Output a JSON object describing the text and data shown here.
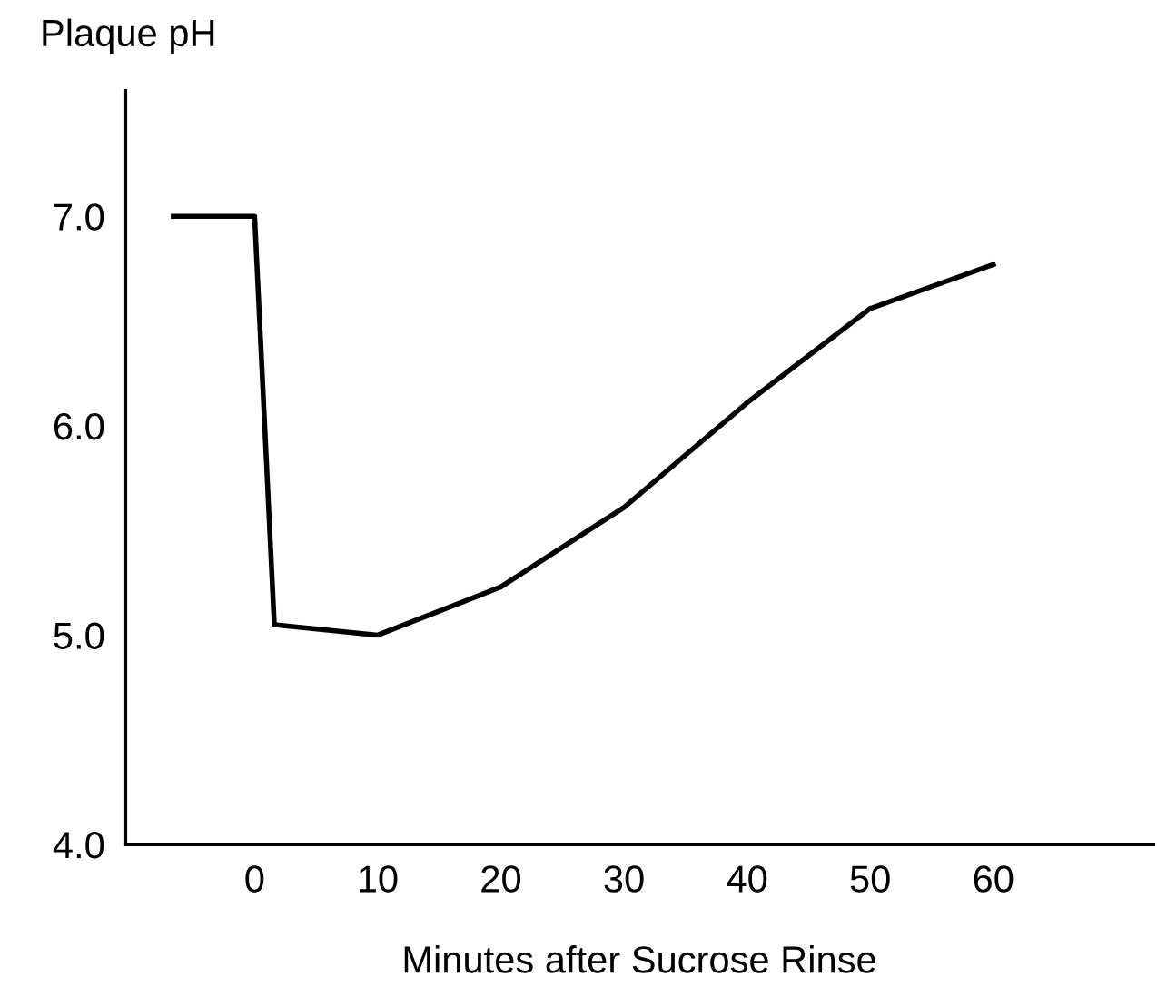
{
  "chart_data": {
    "type": "line",
    "ylabel": "Plaque pH",
    "xlabel": "Minutes after Sucrose Rinse",
    "x": [
      -6.6,
      0,
      1.6,
      10,
      20,
      30,
      40,
      50,
      60
    ],
    "series": [
      {
        "color": "#000000",
        "values": [
          7.0,
          7.0,
          5.05,
          5.0,
          5.23,
          5.61,
          6.11,
          6.56,
          6.77
        ]
      }
    ],
    "xlim": [
      -10.5,
      73
    ],
    "ylim": [
      4.0,
      7.6
    ],
    "xticks": [
      0,
      10,
      20,
      30,
      40,
      50,
      60
    ],
    "yticks": [
      {
        "value": 4,
        "label": "4.0"
      },
      {
        "value": 5,
        "label": "5.0"
      },
      {
        "value": 6,
        "label": "6.0"
      },
      {
        "value": 7,
        "label": "7.0"
      }
    ],
    "grid": false,
    "legend": false,
    "marker": "none",
    "line_style": "solid"
  }
}
